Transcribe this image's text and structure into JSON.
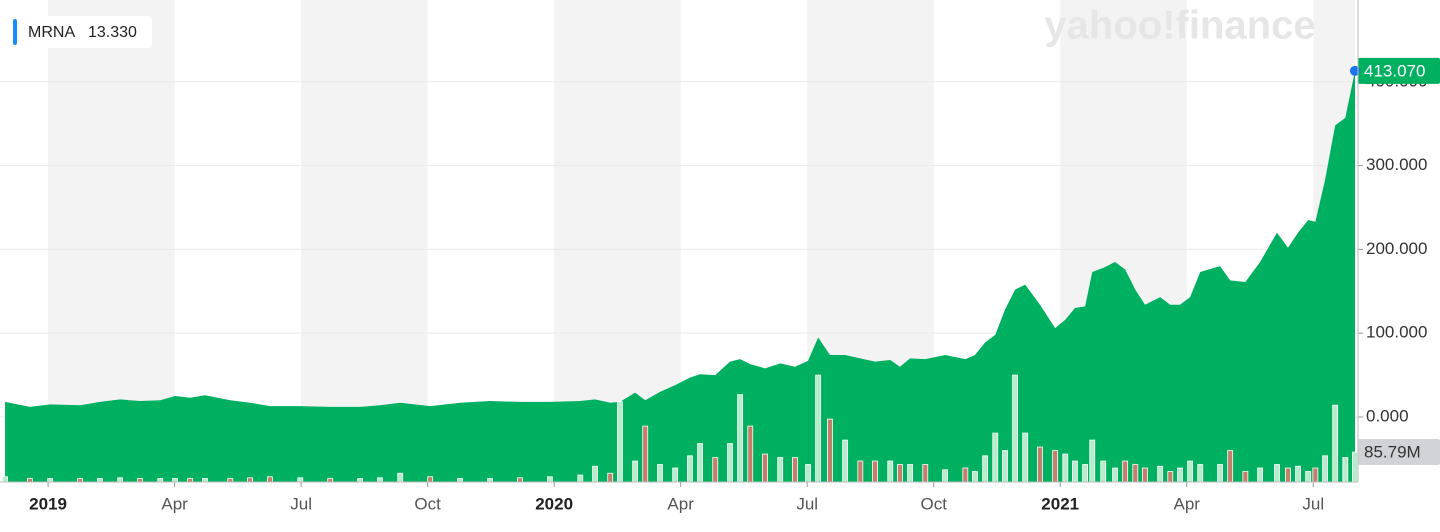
{
  "chart_data": {
    "type": "area",
    "watermark": "yahoo!finance",
    "legend_label": "13.330",
    "price_label": "413.070",
    "volume_label": "85.79M",
    "xlim": [
      -1.14,
      30.99
    ],
    "xticks": [
      {
        "value": 0,
        "label": "2019"
      },
      {
        "value": 3,
        "label": "Apr"
      },
      {
        "value": 6,
        "label": "Jul"
      },
      {
        "value": 9,
        "label": "Oct"
      },
      {
        "value": 12,
        "label": "2020"
      },
      {
        "value": 15,
        "label": "Apr"
      },
      {
        "value": 18,
        "label": "Jul"
      },
      {
        "value": 21,
        "label": "Oct"
      },
      {
        "value": 24,
        "label": "2021"
      },
      {
        "value": 27,
        "label": "Apr"
      },
      {
        "value": 30,
        "label": "Jul"
      }
    ],
    "ylim": [
      -77.6,
      497.6
    ],
    "yticks": [
      {
        "value": 0,
        "label": "0.000"
      },
      {
        "value": 100,
        "label": "100.000"
      },
      {
        "value": 200,
        "label": "200.000"
      },
      {
        "value": 300,
        "label": "300.000"
      },
      {
        "value": 400,
        "label": "400.000"
      }
    ],
    "y2lim": [
      0,
      1380
    ],
    "grid": true,
    "x": [
      -1.02,
      -0.43,
      0.05,
      0.76,
      1.23,
      1.71,
      2.18,
      2.66,
      3.01,
      3.37,
      3.72,
      4.32,
      4.79,
      5.26,
      5.98,
      6.69,
      7.4,
      7.87,
      8.35,
      9.06,
      9.77,
      10.48,
      11.19,
      11.9,
      12.62,
      12.97,
      13.33,
      13.56,
      13.92,
      14.16,
      14.51,
      14.87,
      15.22,
      15.46,
      15.82,
      16.17,
      16.41,
      16.65,
      17.0,
      17.36,
      17.71,
      18.02,
      18.26,
      18.54,
      18.9,
      19.26,
      19.61,
      19.97,
      20.2,
      20.44,
      20.8,
      21.27,
      21.75,
      21.98,
      22.22,
      22.46,
      22.69,
      22.93,
      23.17,
      23.52,
      23.88,
      24.12,
      24.35,
      24.59,
      24.76,
      25.02,
      25.3,
      25.54,
      25.78,
      26.01,
      26.37,
      26.61,
      26.84,
      27.08,
      27.32,
      27.79,
      28.03,
      28.39,
      28.74,
      29.14,
      29.4,
      29.64,
      29.88,
      30.05,
      30.28,
      30.52,
      30.76,
      30.99
    ],
    "series": [
      {
        "name": "MRNA",
        "color": "#00b061",
        "values": [
          18,
          12,
          15,
          14,
          18,
          21,
          19,
          20,
          25,
          23,
          26,
          20,
          17,
          13,
          13,
          12,
          12,
          14,
          17,
          13,
          17,
          19,
          18,
          18,
          19,
          21,
          17,
          18,
          29,
          20,
          30,
          38,
          47,
          51,
          50,
          66,
          69,
          63,
          58,
          64,
          60,
          67,
          95,
          74,
          74,
          70,
          66,
          68,
          60,
          70,
          69,
          74,
          69,
          74,
          89,
          98,
          128,
          152,
          158,
          134,
          106,
          116,
          130,
          132,
          173,
          178,
          185,
          176,
          152,
          134,
          143,
          134,
          134,
          143,
          173,
          180,
          163,
          161,
          185,
          220,
          202,
          220,
          235,
          233,
          283,
          348,
          357,
          413.07
        ]
      },
      {
        "name": "Volume",
        "axis": "y2",
        "up_color": "#b6ecc9",
        "down_color": "#c47f6c",
        "values": [
          15,
          10,
          10,
          10,
          10,
          12,
          10,
          10,
          10,
          10,
          10,
          10,
          12,
          15,
          12,
          10,
          10,
          12,
          25,
          15,
          10,
          10,
          12,
          15,
          20,
          45,
          25,
          230,
          60,
          160,
          50,
          40,
          75,
          110,
          70,
          110,
          250,
          160,
          80,
          70,
          70,
          50,
          306,
          180,
          120,
          60,
          60,
          60,
          50,
          50,
          50,
          35,
          40,
          30,
          75,
          140,
          90,
          306,
          140,
          100,
          90,
          80,
          60,
          50,
          120,
          60,
          40,
          60,
          50,
          40,
          45,
          30,
          40,
          60,
          50,
          50,
          90,
          30,
          40,
          50,
          40,
          45,
          30,
          40,
          75,
          220,
          70,
          85.79
        ]
      }
    ]
  }
}
